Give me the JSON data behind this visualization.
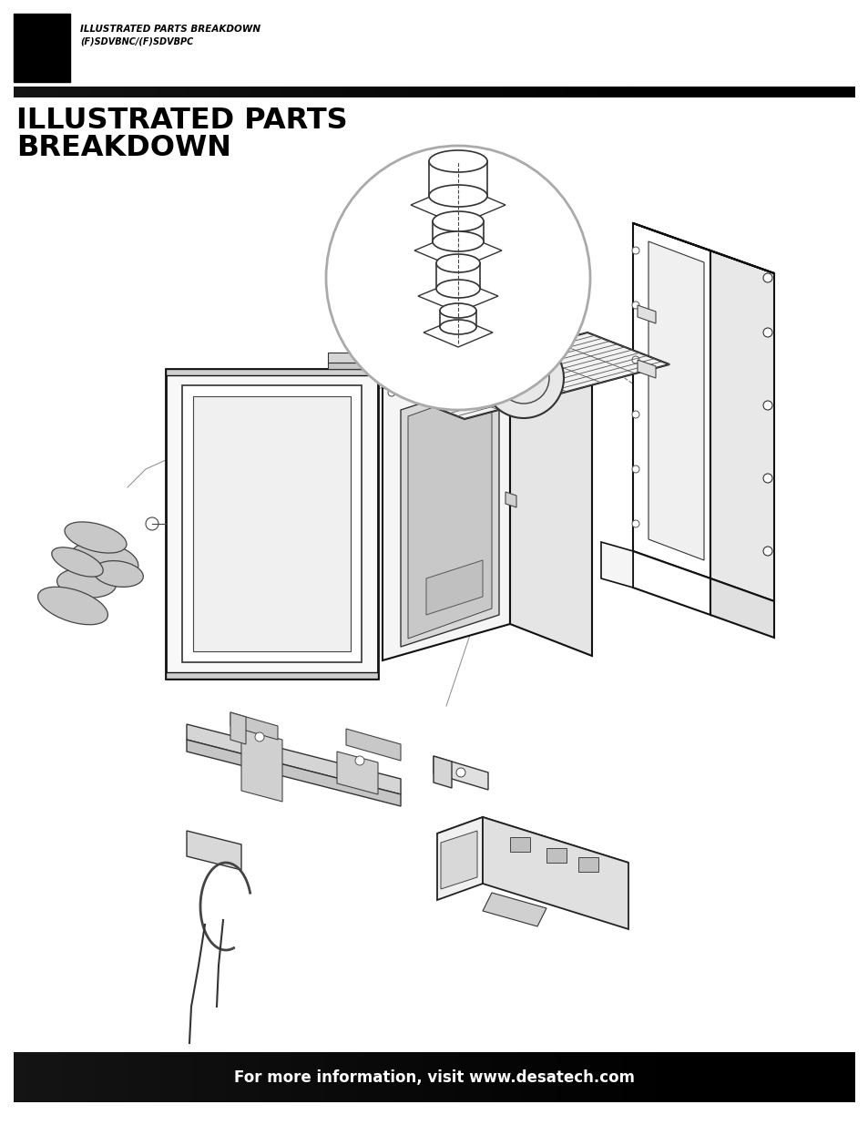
{
  "page_width": 9.54,
  "page_height": 12.35,
  "bg_color": "#ffffff",
  "header_bar_color": "#000000",
  "header_text1": "ILLUSTRATED PARTS BREAKDOWN",
  "header_text2": "(F)SDVBNC/(F)SDVBPC",
  "title_line1": "ILLUSTRATED PARTS",
  "title_line2": "BREAKDOWN",
  "footer_text": "For more information, visit www.desatech.com"
}
